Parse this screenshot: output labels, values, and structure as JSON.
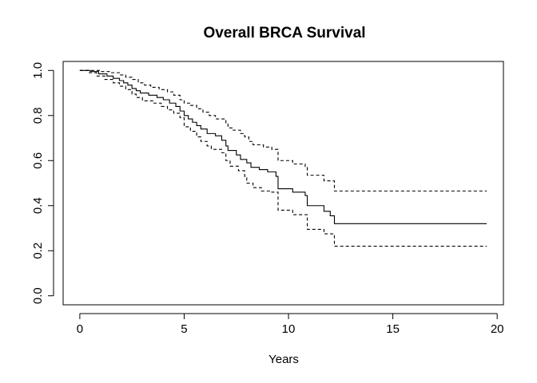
{
  "chart_data": {
    "type": "line",
    "title": "Overall BRCA Survival",
    "xlabel": "Years",
    "ylabel": "",
    "xlim": [
      -0.8,
      20.3
    ],
    "ylim": [
      -0.04,
      1.04
    ],
    "xticks": [
      "0",
      "5",
      "10",
      "15",
      "20"
    ],
    "yticks": [
      "0.0",
      "0.2",
      "0.4",
      "0.6",
      "0.8",
      "1.0"
    ],
    "grid": false,
    "legend": "none",
    "series": [
      {
        "style": "solid",
        "points": [
          [
            0,
            1.0
          ],
          [
            0.5,
            0.995
          ],
          [
            0.9,
            0.985
          ],
          [
            1.3,
            0.975
          ],
          [
            1.6,
            0.965
          ],
          [
            1.9,
            0.955
          ],
          [
            2.1,
            0.945
          ],
          [
            2.3,
            0.935
          ],
          [
            2.5,
            0.92
          ],
          [
            2.7,
            0.91
          ],
          [
            2.9,
            0.9
          ],
          [
            3.3,
            0.89
          ],
          [
            3.7,
            0.88
          ],
          [
            4.0,
            0.87
          ],
          [
            4.3,
            0.855
          ],
          [
            4.6,
            0.84
          ],
          [
            4.8,
            0.82
          ],
          [
            5.0,
            0.8
          ],
          [
            5.2,
            0.785
          ],
          [
            5.4,
            0.77
          ],
          [
            5.6,
            0.755
          ],
          [
            5.8,
            0.74
          ],
          [
            6.1,
            0.72
          ],
          [
            6.5,
            0.71
          ],
          [
            6.8,
            0.69
          ],
          [
            7.0,
            0.665
          ],
          [
            7.1,
            0.645
          ],
          [
            7.5,
            0.625
          ],
          [
            7.7,
            0.605
          ],
          [
            8.0,
            0.59
          ],
          [
            8.2,
            0.57
          ],
          [
            8.6,
            0.56
          ],
          [
            9.0,
            0.55
          ],
          [
            9.4,
            0.53
          ],
          [
            9.5,
            0.475
          ],
          [
            10.2,
            0.46
          ],
          [
            10.8,
            0.445
          ],
          [
            10.9,
            0.4
          ],
          [
            11.7,
            0.375
          ],
          [
            12.0,
            0.355
          ],
          [
            12.2,
            0.32
          ],
          [
            19.5,
            0.32
          ]
        ]
      },
      {
        "style": "dashed",
        "points": [
          [
            0,
            1.0
          ],
          [
            0.6,
            1.0
          ],
          [
            1.0,
            0.995
          ],
          [
            1.5,
            0.99
          ],
          [
            1.9,
            0.98
          ],
          [
            2.2,
            0.97
          ],
          [
            2.5,
            0.96
          ],
          [
            2.8,
            0.945
          ],
          [
            3.1,
            0.935
          ],
          [
            3.4,
            0.925
          ],
          [
            3.8,
            0.915
          ],
          [
            4.2,
            0.905
          ],
          [
            4.5,
            0.89
          ],
          [
            4.8,
            0.87
          ],
          [
            5.0,
            0.855
          ],
          [
            5.3,
            0.845
          ],
          [
            5.6,
            0.83
          ],
          [
            5.9,
            0.815
          ],
          [
            6.2,
            0.8
          ],
          [
            6.5,
            0.785
          ],
          [
            7.0,
            0.765
          ],
          [
            7.1,
            0.745
          ],
          [
            7.3,
            0.735
          ],
          [
            7.7,
            0.72
          ],
          [
            7.9,
            0.705
          ],
          [
            8.1,
            0.685
          ],
          [
            8.3,
            0.67
          ],
          [
            8.8,
            0.66
          ],
          [
            9.2,
            0.65
          ],
          [
            9.5,
            0.6
          ],
          [
            10.2,
            0.585
          ],
          [
            10.8,
            0.57
          ],
          [
            10.9,
            0.535
          ],
          [
            11.7,
            0.51
          ],
          [
            12.2,
            0.465
          ],
          [
            19.5,
            0.465
          ]
        ]
      },
      {
        "style": "dashed",
        "points": [
          [
            0,
            1.0
          ],
          [
            0.4,
            0.99
          ],
          [
            0.8,
            0.975
          ],
          [
            1.2,
            0.96
          ],
          [
            1.6,
            0.945
          ],
          [
            1.9,
            0.93
          ],
          [
            2.2,
            0.915
          ],
          [
            2.5,
            0.895
          ],
          [
            2.7,
            0.88
          ],
          [
            3.0,
            0.865
          ],
          [
            3.5,
            0.855
          ],
          [
            3.9,
            0.84
          ],
          [
            4.2,
            0.825
          ],
          [
            4.5,
            0.81
          ],
          [
            4.8,
            0.79
          ],
          [
            5.0,
            0.75
          ],
          [
            5.3,
            0.73
          ],
          [
            5.6,
            0.705
          ],
          [
            5.8,
            0.685
          ],
          [
            6.1,
            0.665
          ],
          [
            6.3,
            0.65
          ],
          [
            6.8,
            0.635
          ],
          [
            7.0,
            0.6
          ],
          [
            7.2,
            0.575
          ],
          [
            7.6,
            0.555
          ],
          [
            7.9,
            0.53
          ],
          [
            8.0,
            0.5
          ],
          [
            8.3,
            0.48
          ],
          [
            8.7,
            0.465
          ],
          [
            9.2,
            0.46
          ],
          [
            9.5,
            0.38
          ],
          [
            10.2,
            0.36
          ],
          [
            10.9,
            0.295
          ],
          [
            11.7,
            0.275
          ],
          [
            12.2,
            0.22
          ],
          [
            19.5,
            0.22
          ]
        ]
      }
    ]
  }
}
